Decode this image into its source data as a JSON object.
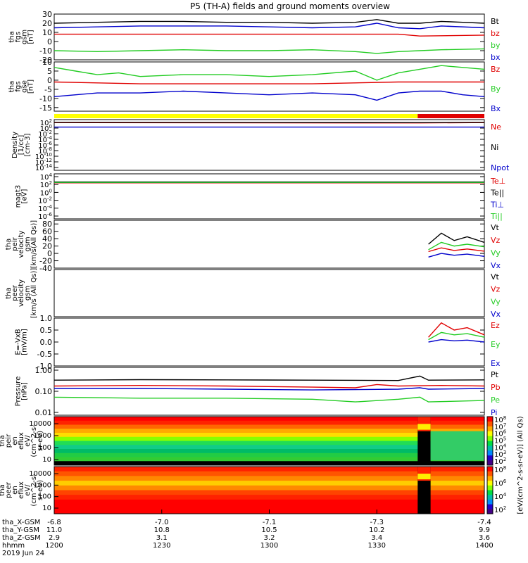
{
  "title": "P5 (TH-A) fields and ground moments overview",
  "colors": {
    "black": "#000000",
    "red": "#e00000",
    "green": "#22cc22",
    "blue": "#0000cc",
    "yellow": "#ffff00",
    "axis": "#000000"
  },
  "chart_data": [
    {
      "type": "line",
      "panel": "fgs_gsm",
      "ylabel_lines": [
        "tha",
        "fgs",
        "gsm",
        "[nT]"
      ],
      "ylim": [
        -20,
        30
      ],
      "yticks": [
        "-20",
        "-10",
        "0",
        "10",
        "20",
        "30"
      ],
      "series": [
        {
          "name": "Bt",
          "color": "black",
          "x": [
            0,
            0.1,
            0.2,
            0.3,
            0.4,
            0.5,
            0.6,
            0.7,
            0.75,
            0.8,
            0.85,
            0.9,
            0.95,
            1.0
          ],
          "y": [
            20,
            21,
            22,
            22,
            21,
            21,
            20,
            21,
            24,
            20,
            20,
            22,
            21,
            20
          ]
        },
        {
          "name": "bz",
          "color": "red",
          "x": [
            0,
            0.2,
            0.4,
            0.6,
            0.8,
            0.85,
            1.0
          ],
          "y": [
            8,
            8,
            8,
            8,
            8,
            6,
            7
          ]
        },
        {
          "name": "by",
          "color": "green",
          "x": [
            0,
            0.1,
            0.2,
            0.3,
            0.4,
            0.5,
            0.6,
            0.7,
            0.75,
            0.8,
            0.85,
            0.9,
            1.0
          ],
          "y": [
            -10,
            -11,
            -10,
            -9,
            -10,
            -10,
            -9,
            -11,
            -13,
            -11,
            -10,
            -9,
            -8
          ]
        },
        {
          "name": "bx",
          "color": "blue",
          "x": [
            0,
            0.1,
            0.2,
            0.3,
            0.4,
            0.5,
            0.6,
            0.7,
            0.75,
            0.8,
            0.85,
            0.9,
            1.0
          ],
          "y": [
            15,
            16,
            17,
            17,
            17,
            16,
            15,
            16,
            20,
            15,
            14,
            17,
            15
          ]
        }
      ]
    },
    {
      "type": "line",
      "panel": "fgs_gse",
      "ylabel_lines": [
        "tha",
        "fgs",
        "gse",
        "[nT]"
      ],
      "ylim": [
        -17,
        10
      ],
      "yticks": [
        "-15",
        "-10",
        "-5",
        "0",
        "5",
        "10"
      ],
      "series": [
        {
          "name": "Bz",
          "color": "red",
          "x": [
            0,
            0.2,
            0.4,
            0.6,
            0.8,
            1.0
          ],
          "y": [
            -1,
            -2,
            -2,
            -2,
            -1,
            -1
          ]
        },
        {
          "name": "By",
          "color": "green",
          "x": [
            0,
            0.05,
            0.1,
            0.15,
            0.2,
            0.3,
            0.4,
            0.5,
            0.6,
            0.7,
            0.75,
            0.8,
            0.85,
            0.9,
            0.95,
            1.0
          ],
          "y": [
            7,
            5,
            3,
            4,
            2,
            3,
            3,
            2,
            3,
            5,
            0,
            4,
            6,
            8,
            7,
            6
          ]
        },
        {
          "name": "Bx",
          "color": "blue",
          "x": [
            0,
            0.05,
            0.1,
            0.2,
            0.3,
            0.4,
            0.5,
            0.6,
            0.7,
            0.75,
            0.8,
            0.85,
            0.9,
            0.95,
            1.0
          ],
          "y": [
            -9,
            -8,
            -7,
            -7,
            -6,
            -7,
            -8,
            -7,
            -8,
            -11,
            -7,
            -6,
            -6,
            -8,
            -9
          ]
        }
      ]
    },
    {
      "type": "line",
      "panel": "density",
      "ylabel_lines": [
        "Density",
        "[1/cc]",
        "[cm-3]"
      ],
      "yscale": "log",
      "yticks": [
        "10^2",
        "10^0",
        "10^-2",
        "10^-4",
        "10^-6",
        "10^-8",
        "10^-10",
        "10^-12",
        "10^-14"
      ],
      "series": [
        {
          "name": "Ne",
          "color": "red",
          "x": [
            0,
            0.85,
            1.0
          ],
          "y": [
            1.5,
            1.4,
            1.5
          ]
        },
        {
          "name": "Ni",
          "color": "black",
          "x": [
            0,
            0.85,
            1.0
          ],
          "y": [
            1.6,
            1.5,
            1.6
          ]
        },
        {
          "name": "Npot",
          "color": "blue",
          "x": [
            0,
            0.7,
            1.0
          ],
          "y": [
            0.0,
            0.0,
            0.0
          ]
        }
      ]
    },
    {
      "type": "line",
      "panel": "temperature",
      "ylabel_lines": [
        "magt3",
        "[eV]"
      ],
      "yscale": "log",
      "yticks": [
        "10^4",
        "10^2",
        "10^0",
        "10^-2",
        "10^-4",
        "10^-6"
      ],
      "series": [
        {
          "name": "Te⊥",
          "color": "red",
          "x": [
            0,
            1.0
          ],
          "y": [
            2.3,
            2.3
          ]
        },
        {
          "name": "Te||",
          "color": "black",
          "x": [
            0,
            1.0
          ],
          "y": [
            2.5,
            2.5
          ]
        },
        {
          "name": "Ti⊥",
          "color": "blue",
          "x": [
            0,
            1.0
          ],
          "y": [
            2.4,
            2.4
          ]
        },
        {
          "name": "Ti||",
          "color": "green",
          "x": [
            0,
            1.0
          ],
          "y": [
            2.4,
            2.4
          ]
        }
      ]
    },
    {
      "type": "line",
      "panel": "peir_velocity",
      "ylabel_lines": [
        "tha",
        "peir",
        "velocity",
        "gsm",
        "[km/s(All Qs)]"
      ],
      "ylim": [
        -40,
        90
      ],
      "yticks": [
        "-40",
        "-20",
        "0",
        "20",
        "40",
        "60",
        "80"
      ],
      "series": [
        {
          "name": "Vt",
          "color": "black",
          "x": [
            0.87,
            0.9,
            0.93,
            0.96,
            1.0
          ],
          "y": [
            25,
            55,
            35,
            45,
            30
          ]
        },
        {
          "name": "Vz",
          "color": "red",
          "x": [
            0.87,
            0.9,
            0.93,
            0.96,
            1.0
          ],
          "y": [
            5,
            15,
            8,
            12,
            6
          ]
        },
        {
          "name": "Vy",
          "color": "green",
          "x": [
            0.87,
            0.9,
            0.93,
            0.96,
            1.0
          ],
          "y": [
            10,
            30,
            20,
            25,
            18
          ]
        },
        {
          "name": "Vx",
          "color": "blue",
          "x": [
            0.87,
            0.9,
            0.93,
            0.96,
            1.0
          ],
          "y": [
            -10,
            0,
            -5,
            -2,
            -8
          ]
        }
      ]
    },
    {
      "type": "line",
      "panel": "peer_velocity",
      "ylabel_lines": [
        "tha",
        "peer",
        "velocity",
        "gsm",
        "[km/s (All Qs)]"
      ],
      "series": [
        {
          "name": "Vt",
          "color": "black"
        },
        {
          "name": "Vz",
          "color": "red"
        },
        {
          "name": "Vy",
          "color": "green"
        },
        {
          "name": "Vx",
          "color": "blue"
        }
      ]
    },
    {
      "type": "line",
      "panel": "efield",
      "ylabel_lines": [
        "E=-VxB",
        "[mV/m]"
      ],
      "ylim": [
        -1.0,
        1.0
      ],
      "yticks": [
        "-1.0",
        "-0.5",
        "0.0",
        "0.5",
        "1.0"
      ],
      "series": [
        {
          "name": "Ez",
          "color": "red",
          "x": [
            0.87,
            0.9,
            0.93,
            0.96,
            1.0
          ],
          "y": [
            0.2,
            0.8,
            0.5,
            0.6,
            0.3
          ]
        },
        {
          "name": "Ey",
          "color": "green",
          "x": [
            0.87,
            0.9,
            0.93,
            0.96,
            1.0
          ],
          "y": [
            0.1,
            0.4,
            0.3,
            0.35,
            0.2
          ]
        },
        {
          "name": "Ex",
          "color": "blue",
          "x": [
            0.87,
            0.9,
            0.93,
            0.96,
            1.0
          ],
          "y": [
            0.0,
            0.1,
            0.05,
            0.08,
            0.0
          ]
        }
      ]
    },
    {
      "type": "line",
      "panel": "pressure",
      "ylabel_lines": [
        "Pressure",
        "[nPa]"
      ],
      "yscale": "log",
      "yticks": [
        "1.00",
        "0.10",
        "0.01"
      ],
      "series": [
        {
          "name": "Pt",
          "color": "black",
          "x": [
            0,
            0.2,
            0.4,
            0.6,
            0.8,
            0.85,
            0.87,
            1.0
          ],
          "y": [
            0.32,
            0.34,
            0.33,
            0.32,
            0.31,
            0.5,
            0.32,
            0.33
          ]
        },
        {
          "name": "Pb",
          "color": "red",
          "x": [
            0,
            0.2,
            0.4,
            0.6,
            0.7,
            0.75,
            0.8,
            0.9,
            1.0
          ],
          "y": [
            0.17,
            0.18,
            0.17,
            0.15,
            0.14,
            0.2,
            0.17,
            0.18,
            0.17
          ]
        },
        {
          "name": "Pe",
          "color": "green",
          "x": [
            0,
            0.2,
            0.4,
            0.6,
            0.7,
            0.8,
            0.85,
            0.87,
            1.0
          ],
          "y": [
            0.05,
            0.045,
            0.045,
            0.04,
            0.03,
            0.04,
            0.05,
            0.03,
            0.035
          ]
        },
        {
          "name": "Pi",
          "color": "blue",
          "x": [
            0,
            0.2,
            0.4,
            0.6,
            0.8,
            0.85,
            0.87,
            1.0
          ],
          "y": [
            0.13,
            0.13,
            0.12,
            0.11,
            0.12,
            0.14,
            0.12,
            0.13
          ]
        }
      ]
    },
    {
      "type": "heatmap",
      "panel": "peir_en_eflux",
      "ylabel_lines": [
        "tha",
        "peir",
        "en",
        "eflux",
        "eV/",
        "(cm^2-s-",
        "sr-eV)"
      ],
      "yticks": [
        "10000",
        "1000",
        "100",
        "10"
      ],
      "colorbar_ticks": [
        "10^8",
        "10^7",
        "10^6",
        "10^5",
        "10^4",
        "10^3",
        "10^2"
      ],
      "colorbar_label": "[eV/(cm^2-s-sr-eV)] (All Qs)"
    },
    {
      "type": "heatmap",
      "panel": "peer_en_eflux",
      "ylabel_lines": [
        "tha",
        "peer",
        "en",
        "eflux",
        "eV/",
        "(cm^2-s-",
        "sr-eV)"
      ],
      "yticks": [
        "10000",
        "1000",
        "100",
        "10"
      ],
      "colorbar_ticks": [
        "10^8",
        "10^6",
        "10^4",
        "10^2"
      ]
    }
  ],
  "x_axis": {
    "rows": [
      {
        "label": "tha_X-GSM",
        "values": [
          "-6.8",
          "-7.0",
          "-7.1",
          "-7.3",
          "-7.4"
        ]
      },
      {
        "label": "tha_Y-GSM",
        "values": [
          "11.0",
          "10.8",
          "10.5",
          "10.2",
          "9.9"
        ]
      },
      {
        "label": "tha_Z-GSM",
        "values": [
          "2.9",
          "3.1",
          "3.2",
          "3.4",
          "3.6"
        ]
      },
      {
        "label": "hhmm",
        "values": [
          "1200",
          "1230",
          "1300",
          "1330",
          "1400"
        ]
      }
    ],
    "date": "2019 Jun 24"
  }
}
